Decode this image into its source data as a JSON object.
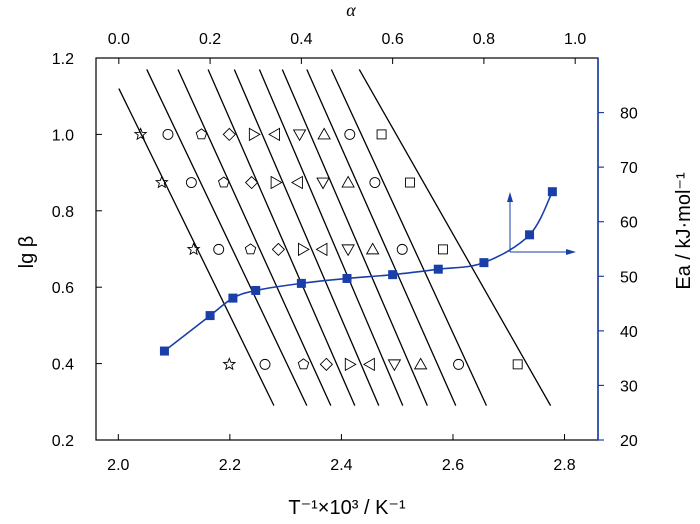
{
  "chart_data": {
    "type": "scatter",
    "title": "",
    "axes": {
      "x_bottom": {
        "label": "T⁻¹×10³ / K⁻¹",
        "range": [
          1.96,
          2.86
        ],
        "ticks": [
          2.0,
          2.2,
          2.4,
          2.6,
          2.8
        ],
        "tick_labels": [
          "2.0",
          "2.2",
          "2.4",
          "2.6",
          "2.8"
        ]
      },
      "x_top": {
        "label": "α",
        "range": [
          -0.05,
          1.05
        ],
        "ticks": [
          0.0,
          0.2,
          0.4,
          0.6,
          0.8,
          1.0
        ],
        "tick_labels": [
          "0.0",
          "0.2",
          "0.4",
          "0.6",
          "0.8",
          "1.0"
        ]
      },
      "y_left": {
        "label": "lg β",
        "range": [
          0.2,
          1.2
        ],
        "ticks": [
          0.2,
          0.4,
          0.6,
          0.8,
          1.0,
          1.2
        ],
        "tick_labels": [
          "0.2",
          "0.4",
          "0.6",
          "0.8",
          "1.0",
          "1.2"
        ]
      },
      "y_right": {
        "label": "Ea / kJ·mol⁻¹",
        "range": [
          20,
          90
        ],
        "ticks": [
          20,
          30,
          40,
          50,
          60,
          70,
          80
        ],
        "tick_labels": [
          "20",
          "30",
          "40",
          "50",
          "60",
          "70",
          "80"
        ],
        "color": "#1a3fa8"
      }
    },
    "fit_lines": [
      {
        "x": [
          2.001,
          2.279
        ],
        "y": [
          1.12,
          0.29
        ]
      },
      {
        "x": [
          2.051,
          2.338
        ],
        "y": [
          1.17,
          0.29
        ]
      },
      {
        "x": [
          2.107,
          2.381
        ],
        "y": [
          1.17,
          0.29
        ]
      },
      {
        "x": [
          2.161,
          2.424
        ],
        "y": [
          1.17,
          0.29
        ]
      },
      {
        "x": [
          2.208,
          2.467
        ],
        "y": [
          1.17,
          0.29
        ]
      },
      {
        "x": [
          2.253,
          2.51
        ],
        "y": [
          1.17,
          0.29
        ]
      },
      {
        "x": [
          2.294,
          2.554
        ],
        "y": [
          1.17,
          0.29
        ]
      },
      {
        "x": [
          2.338,
          2.605
        ],
        "y": [
          1.17,
          0.29
        ]
      },
      {
        "x": [
          2.382,
          2.66
        ],
        "y": [
          1.17,
          0.29
        ]
      },
      {
        "x": [
          2.432,
          2.775
        ],
        "y": [
          1.17,
          0.29
        ]
      }
    ],
    "isoconversion_series": [
      {
        "marker": "star",
        "points": [
          [
            2.04,
            1.0
          ],
          [
            2.078,
            0.874
          ],
          [
            2.135,
            0.699
          ],
          [
            2.199,
            0.398
          ]
        ]
      },
      {
        "marker": "circle",
        "points": [
          [
            2.089,
            1.0
          ],
          [
            2.131,
            0.874
          ],
          [
            2.18,
            0.699
          ],
          [
            2.263,
            0.398
          ]
        ]
      },
      {
        "marker": "pentagon",
        "points": [
          [
            2.149,
            1.0
          ],
          [
            2.189,
            0.874
          ],
          [
            2.237,
            0.699
          ],
          [
            2.332,
            0.398
          ]
        ]
      },
      {
        "marker": "diamond",
        "points": [
          [
            2.199,
            1.0
          ],
          [
            2.239,
            0.874
          ],
          [
            2.287,
            0.699
          ],
          [
            2.373,
            0.398
          ]
        ]
      },
      {
        "marker": "triangle-right",
        "points": [
          [
            2.243,
            1.0
          ],
          [
            2.282,
            0.874
          ],
          [
            2.331,
            0.699
          ],
          [
            2.415,
            0.398
          ]
        ]
      },
      {
        "marker": "triangle-left",
        "points": [
          [
            2.281,
            1.0
          ],
          [
            2.322,
            0.874
          ],
          [
            2.366,
            0.699
          ],
          [
            2.451,
            0.398
          ]
        ]
      },
      {
        "marker": "triangle-down",
        "points": [
          [
            2.325,
            1.0
          ],
          [
            2.367,
            0.874
          ],
          [
            2.412,
            0.699
          ],
          [
            2.495,
            0.398
          ]
        ]
      },
      {
        "marker": "triangle-up",
        "points": [
          [
            2.369,
            1.0
          ],
          [
            2.412,
            0.874
          ],
          [
            2.456,
            0.699
          ],
          [
            2.542,
            0.398
          ]
        ]
      },
      {
        "marker": "circle",
        "points": [
          [
            2.415,
            1.0
          ],
          [
            2.46,
            0.874
          ],
          [
            2.509,
            0.699
          ],
          [
            2.61,
            0.398
          ]
        ]
      },
      {
        "marker": "square",
        "points": [
          [
            2.472,
            1.0
          ],
          [
            2.523,
            0.874
          ],
          [
            2.582,
            0.699
          ],
          [
            2.716,
            0.398
          ]
        ]
      }
    ],
    "activation_energy": {
      "axis": "x_top / y_right",
      "color": "#1a3fa8",
      "alpha": [
        0.1,
        0.2,
        0.25,
        0.3,
        0.4,
        0.5,
        0.6,
        0.7,
        0.8,
        0.9,
        0.95
      ],
      "Ea": [
        36.3,
        42.8,
        46.0,
        47.4,
        48.7,
        49.6,
        50.3,
        51.3,
        52.5,
        57.6,
        65.5
      ]
    },
    "grid": false,
    "legend": "none"
  }
}
